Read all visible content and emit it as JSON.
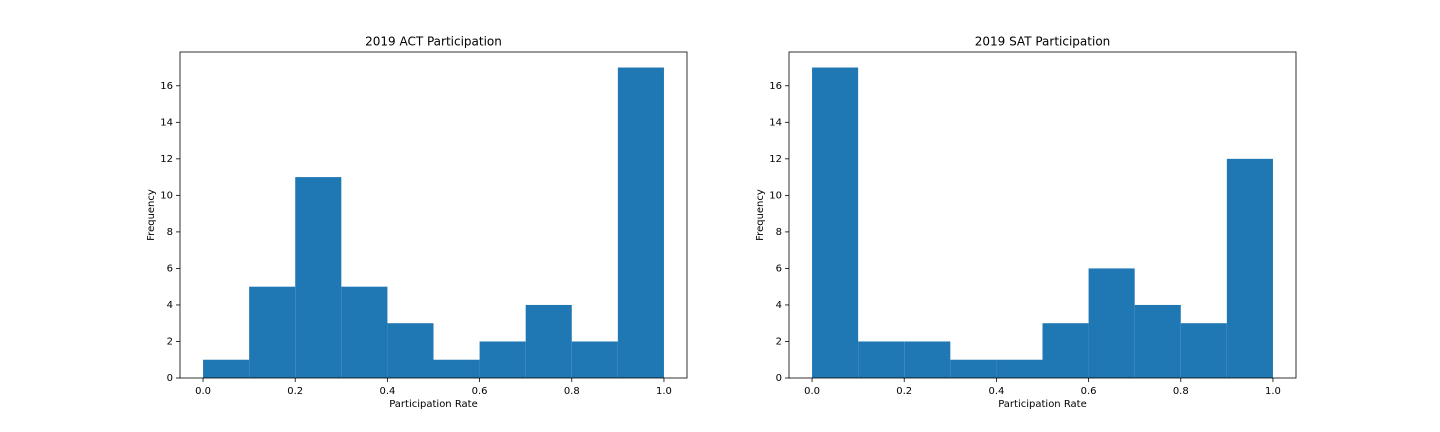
{
  "chart_data": [
    {
      "type": "histogram",
      "title": "2019 ACT Participation",
      "xlabel": "Participation Rate",
      "ylabel": "Frequency",
      "bins": [
        0,
        0.1,
        0.2,
        0.3,
        0.4,
        0.5,
        0.6,
        0.7,
        0.8,
        0.9,
        1.0
      ],
      "counts": [
        1,
        5,
        11,
        5,
        3,
        1,
        2,
        4,
        2,
        17
      ],
      "color": "#1f77b4",
      "xlim": [
        -0.05,
        1.05
      ],
      "xticks": [
        {
          "value": 0,
          "label": "0.0"
        },
        0.2,
        0.4,
        0.6,
        0.8,
        {
          "value": 1,
          "label": "1.0"
        }
      ],
      "ylim": [
        0,
        17.85
      ],
      "yticks": [
        0,
        2,
        4,
        6,
        8,
        10,
        12,
        14,
        16
      ]
    },
    {
      "type": "histogram",
      "title": "2019 SAT Participation",
      "xlabel": "Participation Rate",
      "ylabel": "Frequency",
      "bins": [
        0,
        0.1,
        0.2,
        0.3,
        0.4,
        0.5,
        0.6,
        0.7,
        0.8,
        0.9,
        1.0
      ],
      "counts": [
        17,
        2,
        2,
        1,
        1,
        3,
        6,
        4,
        3,
        12
      ],
      "color": "#1f77b4",
      "xlim": [
        -0.05,
        1.05
      ],
      "xticks": [
        {
          "value": 0,
          "label": "0.0"
        },
        0.2,
        0.4,
        0.6,
        0.8,
        {
          "value": 1,
          "label": "1.0"
        }
      ],
      "ylim": [
        0,
        17.85
      ],
      "yticks": [
        0,
        2,
        4,
        6,
        8,
        10,
        12,
        14,
        16
      ]
    }
  ]
}
